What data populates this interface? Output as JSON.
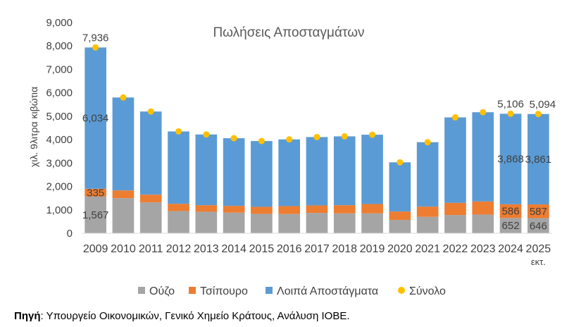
{
  "chart_data": {
    "type": "bar",
    "stacked": true,
    "title": "Πωλήσεις Αποσταγμάτων",
    "ylabel": "χιλ. 9λιτρα κιβώτια",
    "xlabel": "",
    "ylim": [
      0,
      9000
    ],
    "yticks": [
      "0",
      "1,000",
      "2,000",
      "3,000",
      "4,000",
      "5,000",
      "6,000",
      "7,000",
      "8,000",
      "9,000"
    ],
    "ytick_values": [
      0,
      1000,
      2000,
      3000,
      4000,
      5000,
      6000,
      7000,
      8000,
      9000
    ],
    "categories": [
      "2009",
      "2010",
      "2011",
      "2012",
      "2013",
      "2014",
      "2015",
      "2016",
      "2017",
      "2018",
      "2019",
      "2020",
      "2021",
      "2022",
      "2023",
      "2024",
      "2025"
    ],
    "category_sublabels": [
      "",
      "",
      "",
      "",
      "",
      "",
      "",
      "",
      "",
      "",
      "",
      "",
      "",
      "",
      "",
      "",
      "εκτ."
    ],
    "series": [
      {
        "name": "Ούζο",
        "color": "#a5a5a5",
        "values": [
          1567,
          1500,
          1320,
          950,
          920,
          880,
          830,
          820,
          870,
          850,
          850,
          570,
          700,
          780,
          800,
          652,
          646
        ]
      },
      {
        "name": "Τσίπουρο",
        "color": "#ed7d31",
        "values": [
          335,
          330,
          330,
          310,
          280,
          290,
          300,
          340,
          320,
          350,
          400,
          360,
          440,
          520,
          560,
          586,
          587
        ]
      },
      {
        "name": "Λοιπά Αποστάγματα",
        "color": "#5b9bd5",
        "values": [
          6034,
          3970,
          3550,
          3090,
          3020,
          2890,
          2810,
          2850,
          2920,
          2940,
          2960,
          2100,
          2750,
          3650,
          3810,
          3868,
          3861
        ]
      }
    ],
    "total": {
      "name": "Σύνολο",
      "color": "#ffc000",
      "values": [
        7936,
        5800,
        5200,
        4350,
        4220,
        4060,
        3940,
        4010,
        4110,
        4140,
        4210,
        3030,
        3890,
        4950,
        5170,
        5106,
        5094
      ]
    },
    "data_labels": [
      {
        "series": "Σύνολο",
        "category": "2009",
        "text": "7,936"
      },
      {
        "series": "Λοιπά Αποστάγματα",
        "category": "2009",
        "text": "6,034"
      },
      {
        "series": "Τσίπουρο",
        "category": "2009",
        "text": "335"
      },
      {
        "series": "Ούζο",
        "category": "2009",
        "text": "1,567"
      },
      {
        "series": "Σύνολο",
        "category": "2024",
        "text": "5,106"
      },
      {
        "series": "Λοιπά Αποστάγματα",
        "category": "2024",
        "text": "3,868"
      },
      {
        "series": "Τσίπουρο",
        "category": "2024",
        "text": "586"
      },
      {
        "series": "Ούζο",
        "category": "2024",
        "text": "652"
      },
      {
        "series": "Σύνολο",
        "category": "2025",
        "text": "5,094"
      },
      {
        "series": "Λοιπά Αποστάγματα",
        "category": "2025",
        "text": "3,861"
      },
      {
        "series": "Τσίπουρο",
        "category": "2025",
        "text": "587"
      },
      {
        "series": "Ούζο",
        "category": "2025",
        "text": "646"
      }
    ],
    "legend": {
      "position": "bottom",
      "items": [
        "Ούζο",
        "Τσίπουρο",
        "Λοιπά Αποστάγματα",
        "Σύνολο"
      ]
    },
    "grid": false
  },
  "source": {
    "label": "Πηγή",
    "text": ": Υπουργείο Οικονομικών, Γενικό Χημείο Κράτους, Ανάλυση ΙΟΒΕ."
  }
}
